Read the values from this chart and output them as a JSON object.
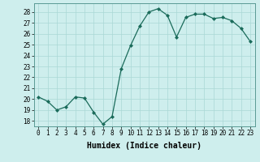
{
  "x": [
    0,
    1,
    2,
    3,
    4,
    5,
    6,
    7,
    8,
    9,
    10,
    11,
    12,
    13,
    14,
    15,
    16,
    17,
    18,
    19,
    20,
    21,
    22,
    23
  ],
  "y": [
    20.2,
    19.8,
    19.0,
    19.3,
    20.2,
    20.1,
    18.8,
    17.7,
    18.4,
    22.8,
    24.9,
    26.7,
    28.0,
    28.3,
    27.7,
    25.7,
    27.5,
    27.8,
    27.8,
    27.4,
    27.5,
    27.2,
    26.5,
    25.3
  ],
  "line_color": "#1a6b5a",
  "marker": "D",
  "marker_size": 2.0,
  "bg_color": "#ceeeed",
  "grid_color": "#aad8d5",
  "xlabel": "Humidex (Indice chaleur)",
  "ylabel_ticks": [
    18,
    19,
    20,
    21,
    22,
    23,
    24,
    25,
    26,
    27,
    28
  ],
  "ylim": [
    17.5,
    28.8
  ],
  "xlim": [
    -0.5,
    23.5
  ],
  "tick_fontsize": 5.5,
  "xlabel_fontsize": 7.0
}
